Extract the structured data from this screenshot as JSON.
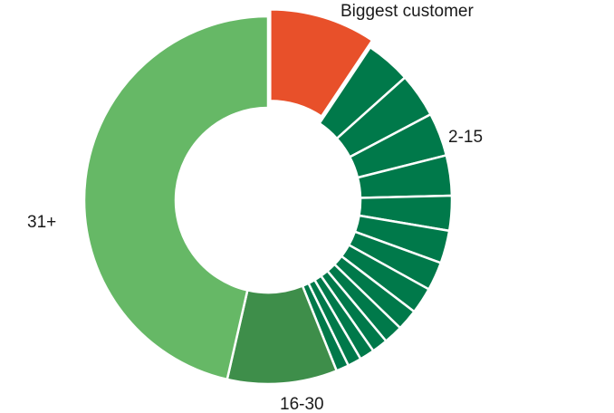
{
  "chart_data": {
    "type": "pie",
    "donut": true,
    "slices": [
      {
        "label": "Biggest customer",
        "value": 10.1,
        "color": "#E8502A",
        "exploded": true
      },
      {
        "label": "",
        "value": 4.3,
        "group": "2-15",
        "color": "#00794A"
      },
      {
        "label": "",
        "value": 4.2,
        "group": "2-15",
        "color": "#00794A"
      },
      {
        "label": "",
        "value": 4.1,
        "group": "2-15",
        "color": "#00794A"
      },
      {
        "label": "",
        "value": 3.8,
        "group": "2-15",
        "color": "#00794A"
      },
      {
        "label": "",
        "value": 3.3,
        "group": "2-15",
        "color": "#00794A"
      },
      {
        "label": "",
        "value": 3.1,
        "group": "2-15",
        "color": "#00794A"
      },
      {
        "label": "",
        "value": 2.7,
        "group": "2-15",
        "color": "#00794A"
      },
      {
        "label": "",
        "value": 2.5,
        "group": "2-15",
        "color": "#00794A"
      },
      {
        "label": "",
        "value": 2.0,
        "group": "2-15",
        "color": "#00794A"
      },
      {
        "label": "",
        "value": 1.8,
        "group": "2-15",
        "color": "#00794A"
      },
      {
        "label": "",
        "value": 1.5,
        "group": "2-15",
        "color": "#00794A"
      },
      {
        "label": "",
        "value": 1.4,
        "group": "2-15",
        "color": "#00794A"
      },
      {
        "label": "",
        "value": 1.3,
        "group": "2-15",
        "color": "#00794A"
      },
      {
        "label": "",
        "value": 1.2,
        "group": "2-15",
        "color": "#00794A"
      },
      {
        "label": "",
        "value": 10.4,
        "group": "16-30",
        "color": "#3E8E4A"
      },
      {
        "label": "",
        "value": 50.0,
        "group": "31+",
        "color": "#66B866"
      }
    ],
    "labels": [
      {
        "text": "Biggest customer",
        "position": "top-right"
      },
      {
        "text": "2-15",
        "position": "right"
      },
      {
        "text": "16-30",
        "position": "bottom"
      },
      {
        "text": "31+",
        "position": "left"
      }
    ]
  }
}
